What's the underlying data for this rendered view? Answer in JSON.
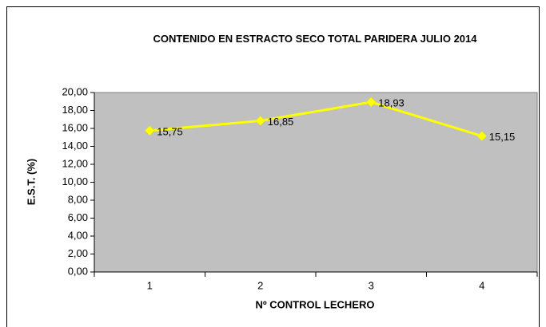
{
  "chart_data": {
    "type": "line",
    "title": "CONTENIDO EN ESTRACTO SECO TOTAL PARIDERA JULIO 2014",
    "x_label": "Nº CONTROL LECHERO",
    "y_label": "E.S.T. (%)",
    "categories": [
      "1",
      "2",
      "3",
      "4"
    ],
    "series": [
      {
        "name": "E.S.T.",
        "color": "#ffff00",
        "values": [
          15.75,
          16.85,
          18.93,
          15.15
        ],
        "value_labels": [
          "15,75",
          "16,85",
          "18,93",
          "15,15"
        ]
      }
    ],
    "ylim": [
      0,
      20
    ],
    "yticks": [
      {
        "value": 0,
        "label": "0,00"
      },
      {
        "value": 2,
        "label": "2,00"
      },
      {
        "value": 4,
        "label": "4,00"
      },
      {
        "value": 6,
        "label": "6,00"
      },
      {
        "value": 8,
        "label": "8,00"
      },
      {
        "value": 10,
        "label": "10,00"
      },
      {
        "value": 12,
        "label": "12,00"
      },
      {
        "value": 14,
        "label": "14,00"
      },
      {
        "value": 16,
        "label": "16,00"
      },
      {
        "value": 18,
        "label": "18,00"
      },
      {
        "value": 20,
        "label": "20,00"
      }
    ],
    "plot_background": "#c0c0c0",
    "grid": false
  }
}
